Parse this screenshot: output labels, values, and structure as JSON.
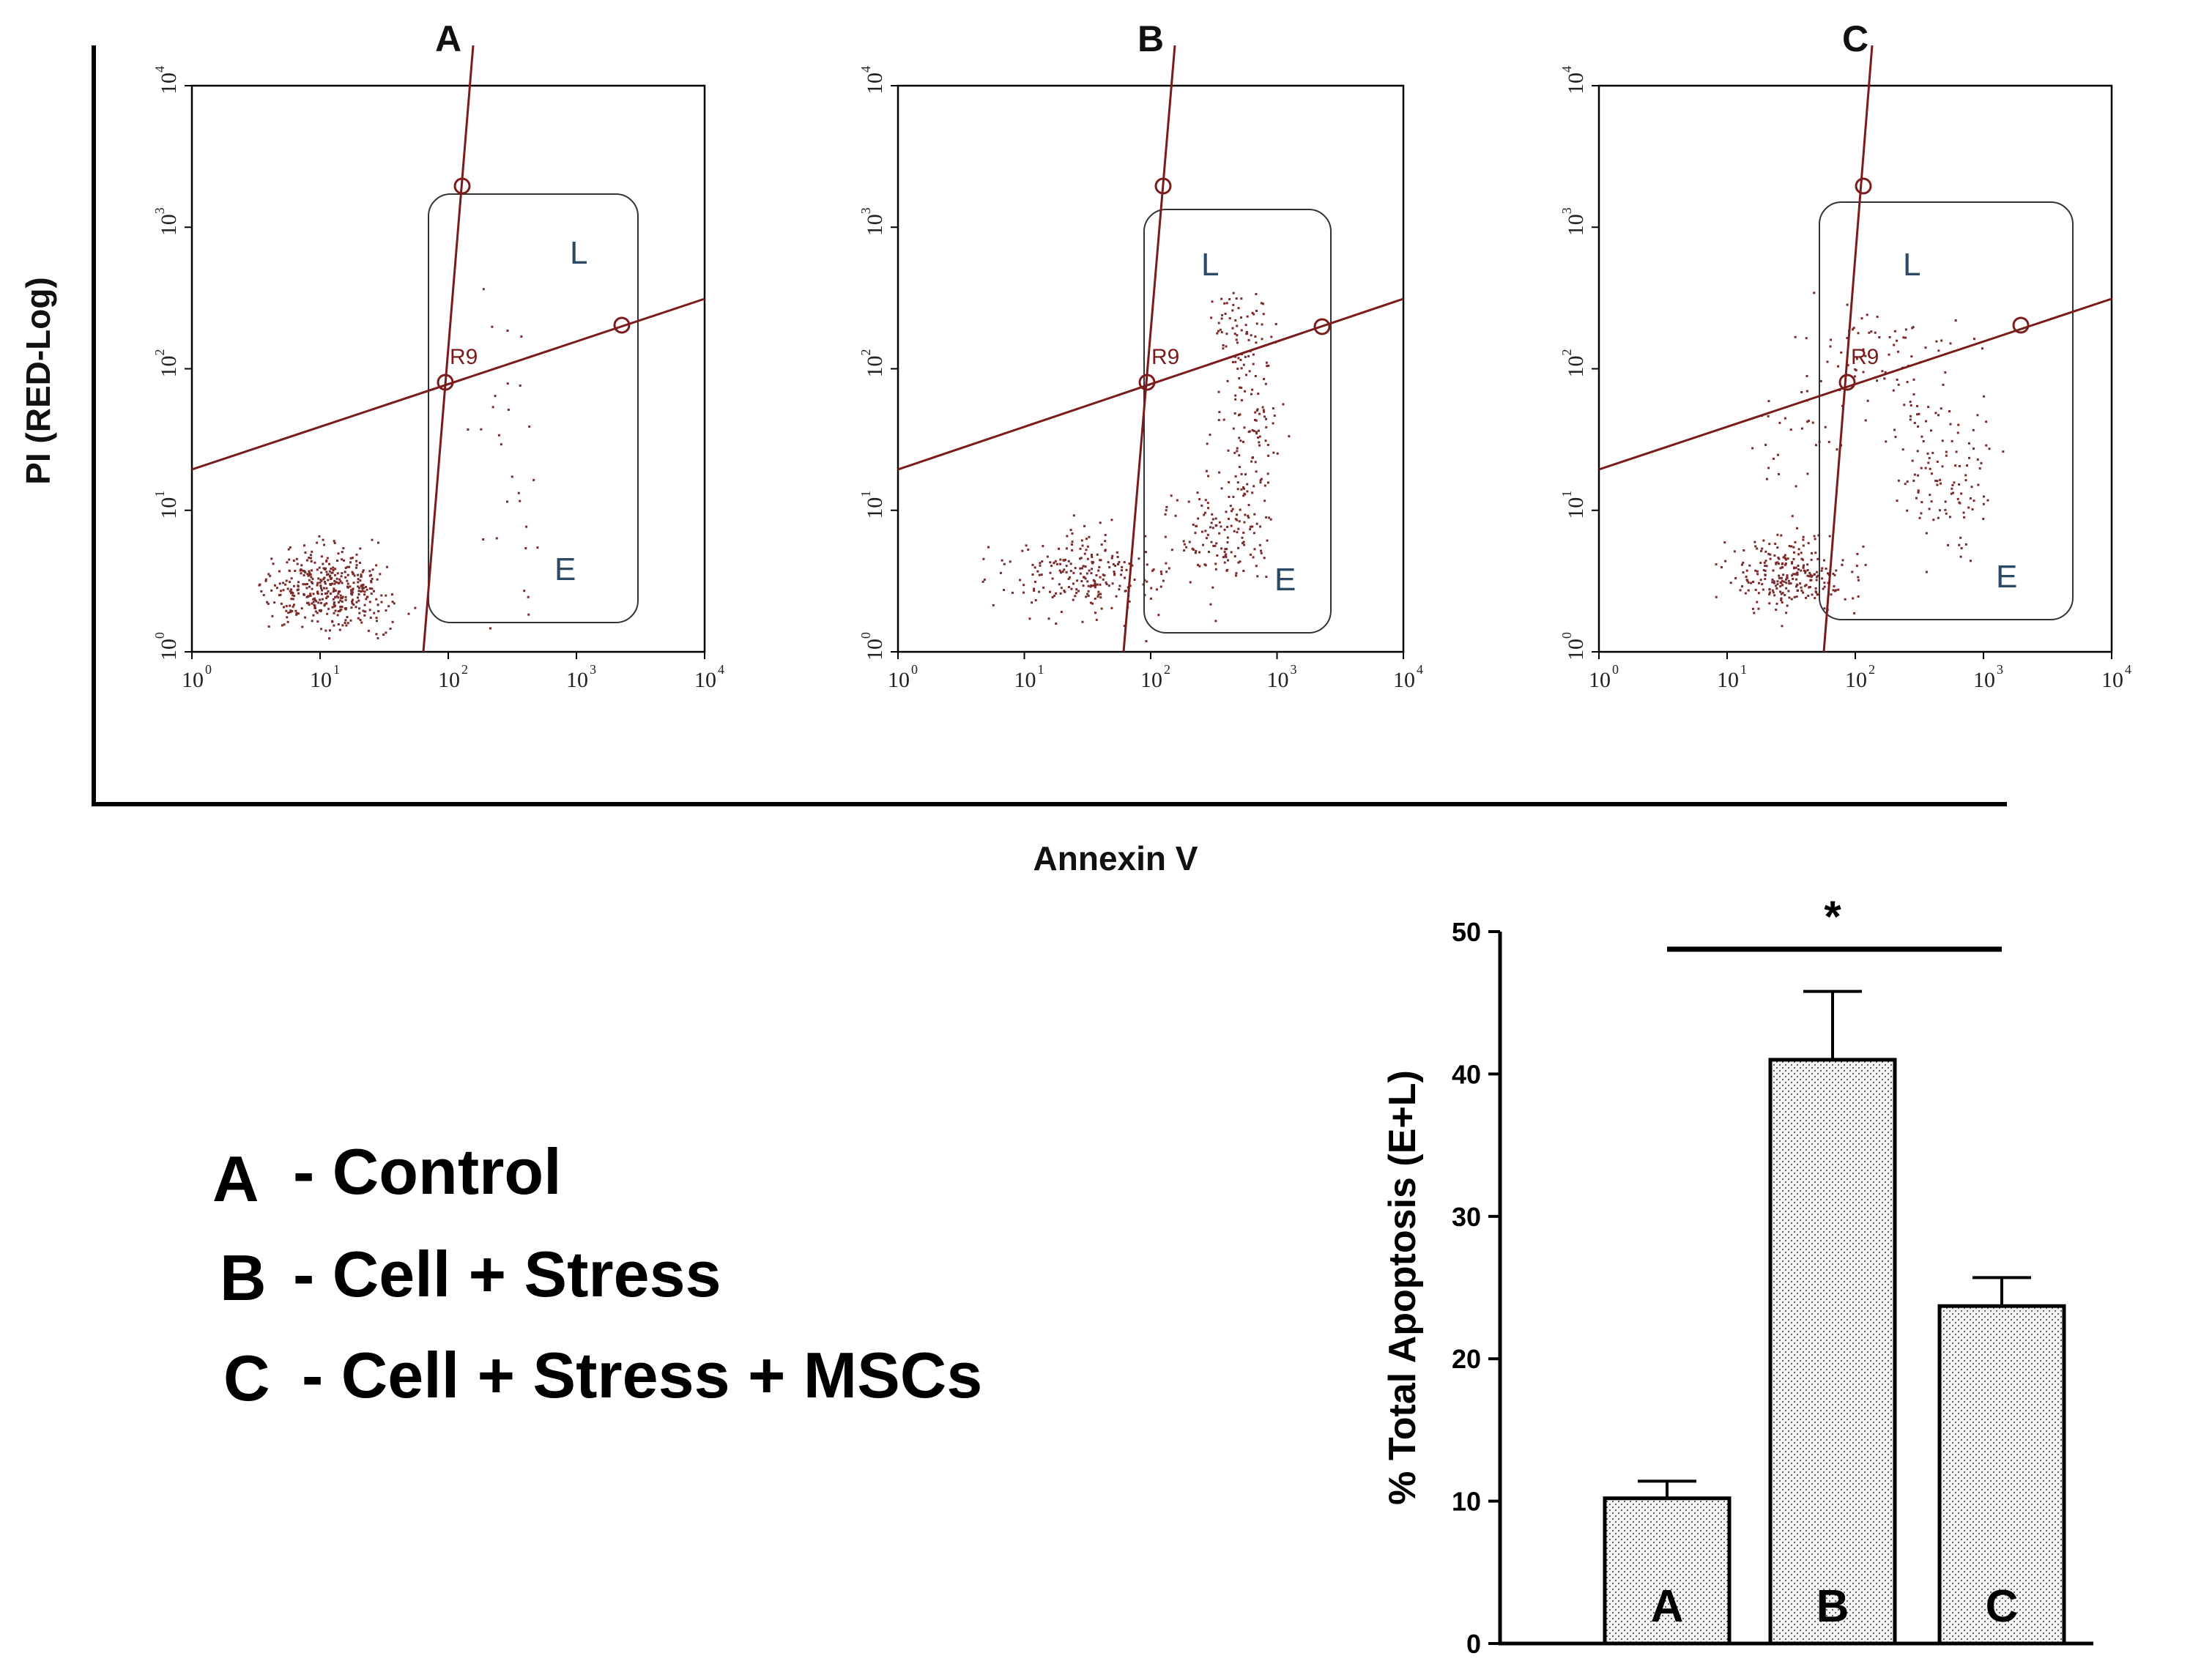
{
  "chart_data": [
    {
      "type": "scatter",
      "panels": [
        {
          "title": "A",
          "quadrant_labels": {
            "late": "L",
            "early": "E"
          },
          "gate_label": "R9"
        },
        {
          "title": "B",
          "quadrant_labels": {
            "late": "L",
            "early": "E"
          },
          "gate_label": "R9"
        },
        {
          "title": "C",
          "quadrant_labels": {
            "late": "L",
            "early": "E"
          },
          "gate_label": "R9"
        }
      ],
      "xlabel": "Annexin V",
      "ylabel": "PI (RED-Log)",
      "scale": "log",
      "xlim": [
        1,
        10000
      ],
      "ylim": [
        1,
        10000
      ],
      "tick_labels": [
        {
          "base": "10",
          "exp": "0"
        },
        {
          "base": "10",
          "exp": "1"
        },
        {
          "base": "10",
          "exp": "2"
        },
        {
          "base": "10",
          "exp": "3"
        },
        {
          "base": "10",
          "exp": "4"
        }
      ]
    },
    {
      "type": "bar",
      "categories": [
        "A",
        "B",
        "C"
      ],
      "values": [
        10.2,
        41.0,
        23.7
      ],
      "errors": [
        1.2,
        4.8,
        2.0
      ],
      "ylabel": "% Total Apoptosis (E+L)",
      "ylim": [
        0,
        50
      ],
      "yticks": [
        "0",
        "10",
        "20",
        "30",
        "40",
        "50"
      ],
      "significance": "*"
    }
  ],
  "legend": [
    {
      "key": "A",
      "text": "- Control"
    },
    {
      "key": "B",
      "text": "- Cell + Stress"
    },
    {
      "key": "C",
      "text": "- Cell + Stress + MSCs"
    }
  ],
  "colors": {
    "dots": "#7a2a2a",
    "gate_line": "#7a1c1c",
    "quadrant_text": "#2a4a66",
    "bar_fill": "#f2f2f2"
  }
}
